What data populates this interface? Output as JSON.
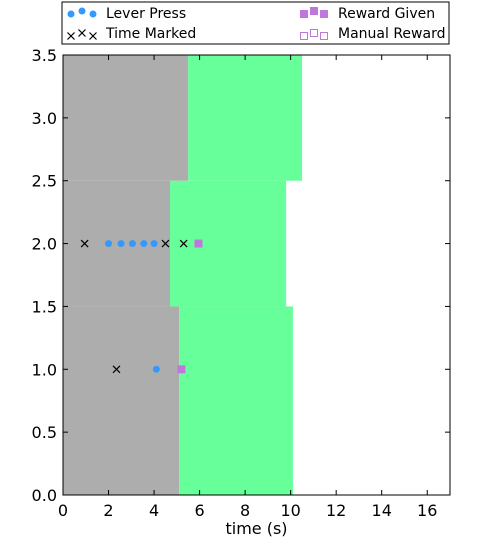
{
  "chart_data": {
    "type": "scatter",
    "xlabel": "time (s)",
    "ylabel": "",
    "xlim": [
      0,
      17
    ],
    "ylim": [
      0,
      3.5
    ],
    "x_ticks": [
      "0",
      "2",
      "4",
      "6",
      "8",
      "10",
      "12",
      "14",
      "16"
    ],
    "y_ticks": [
      "0.0",
      "0.5",
      "1.0",
      "1.5",
      "2.0",
      "2.5",
      "3.0",
      "3.5"
    ],
    "grid": false,
    "legend_position": "top",
    "colors": {
      "period_gray": "#adadad",
      "period_green": "#66ff99",
      "lever_press": "#3399ff",
      "time_marked": "#000000",
      "reward": "#bf77de"
    },
    "trial_periods": [
      {
        "trial": 1,
        "y_range": [
          0,
          1.5
        ],
        "gray": [
          0,
          5.1
        ],
        "green": [
          5.1,
          10.1
        ]
      },
      {
        "trial": 2,
        "y_range": [
          1.5,
          2.5
        ],
        "gray": [
          0,
          4.7
        ],
        "green": [
          4.7,
          9.8
        ]
      },
      {
        "trial": 3,
        "y_range": [
          2.5,
          3.5
        ],
        "gray": [
          0,
          5.5
        ],
        "green": [
          5.5,
          10.5
        ]
      }
    ],
    "series": [
      {
        "name": "Lever Press",
        "marker": "circle",
        "points": [
          [
            4.1,
            1.0
          ],
          [
            2.0,
            2.0
          ],
          [
            2.55,
            2.0
          ],
          [
            3.05,
            2.0
          ],
          [
            3.55,
            2.0
          ],
          [
            4.0,
            2.0
          ]
        ]
      },
      {
        "name": "Time Marked",
        "marker": "x",
        "points": [
          [
            2.35,
            1.0
          ],
          [
            0.95,
            2.0
          ],
          [
            4.5,
            2.0
          ],
          [
            5.3,
            2.0
          ]
        ]
      },
      {
        "name": "Reward Given",
        "marker": "filled-square",
        "points": [
          [
            5.2,
            1.0
          ],
          [
            5.95,
            2.0
          ]
        ]
      },
      {
        "name": "Manual Reward",
        "marker": "open-square",
        "points": []
      }
    ]
  }
}
